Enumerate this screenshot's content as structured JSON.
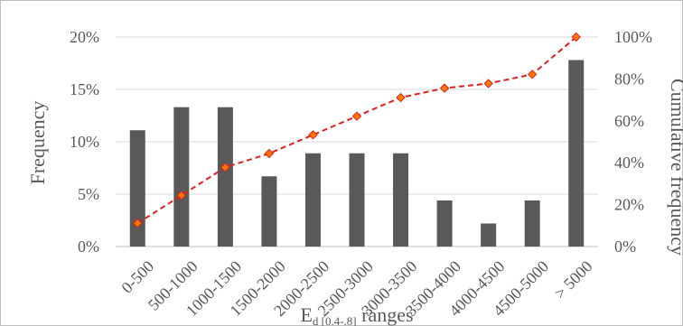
{
  "chart_data": {
    "type": "bar",
    "categories": [
      "0-500",
      "500-1000",
      "1000-1500",
      "1500-2000",
      "2000-2500",
      "2500-3000",
      "3000-3500",
      "3500-4000",
      "4000-4500",
      "4500-5000",
      "> 5000"
    ],
    "series": [
      {
        "name": "",
        "type": "bar",
        "axis": "left",
        "values": [
          11.1,
          13.3,
          13.3,
          6.7,
          8.9,
          8.9,
          8.9,
          4.4,
          2.2,
          4.4,
          17.8
        ],
        "color": "#595959"
      },
      {
        "name": "",
        "type": "line",
        "axis": "right",
        "values": [
          11.1,
          24.4,
          37.8,
          44.4,
          53.3,
          62.2,
          71.1,
          75.6,
          77.8,
          82.2,
          100.0
        ],
        "color": "#e02020",
        "marker_color": "#ff7a00"
      }
    ],
    "ylabel": "Frequency",
    "ylabel_right": "Cumulative frequency",
    "xlabel_main": "E",
    "xlabel_sub": "d [0.4-.8]",
    "xlabel_tail": " ranges",
    "yticks_left": [
      "0%",
      "5%",
      "10%",
      "15%",
      "20%"
    ],
    "yticks_right": [
      "0%",
      "20%",
      "40%",
      "60%",
      "80%",
      "100%"
    ],
    "ylim": [
      0,
      20
    ],
    "ylim_right": [
      0,
      100
    ],
    "grid": true,
    "legend": "none"
  }
}
